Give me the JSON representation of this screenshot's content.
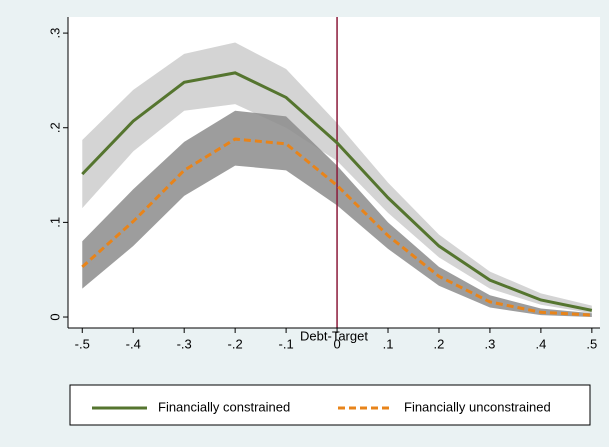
{
  "chart_data": {
    "type": "line",
    "x": [
      -0.5,
      -0.4,
      -0.3,
      -0.2,
      -0.1,
      0,
      0.1,
      0.2,
      0.3,
      0.4,
      0.5
    ],
    "xlabel": "Debt-Target",
    "xlim": [
      -0.528,
      0.516
    ],
    "xticks": [
      {
        "value": -0.5,
        "label": "-.5"
      },
      {
        "value": -0.4,
        "label": "-.4"
      },
      {
        "value": -0.3,
        "label": "-.3"
      },
      {
        "value": -0.2,
        "label": "-.2"
      },
      {
        "value": -0.1,
        "label": "-.1"
      },
      0,
      {
        "value": 0.1,
        "label": ".1"
      },
      {
        "value": 0.2,
        "label": ".2"
      },
      {
        "value": 0.3,
        "label": ".3"
      },
      {
        "value": 0.4,
        "label": ".4"
      },
      {
        "value": 0.5,
        "label": ".5"
      }
    ],
    "ylim": [
      -0.0116,
      0.317
    ],
    "yticks": [
      0,
      {
        "value": 0.1,
        "label": ".1"
      },
      {
        "value": 0.2,
        "label": ".2"
      },
      {
        "value": 0.3,
        "label": ".3"
      }
    ],
    "reference_line_x": 0,
    "reference_line_color": "#8b1a3a",
    "series": [
      {
        "name": "Financially constrained",
        "color": "#55752f",
        "dash": false,
        "band_color": "#d4d4d4",
        "values": [
          0.151,
          0.207,
          0.248,
          0.258,
          0.232,
          0.184,
          0.126,
          0.075,
          0.039,
          0.018,
          0.007
        ],
        "upper": [
          0.187,
          0.24,
          0.278,
          0.29,
          0.262,
          0.205,
          0.142,
          0.087,
          0.048,
          0.025,
          0.012
        ],
        "lower": [
          0.115,
          0.175,
          0.218,
          0.225,
          0.2,
          0.165,
          0.11,
          0.063,
          0.03,
          0.013,
          0.004
        ]
      },
      {
        "name": "Financially unconstrained",
        "color": "#e8841a",
        "dash": true,
        "band_color": "#8c8c8c",
        "values": [
          0.053,
          0.101,
          0.155,
          0.188,
          0.183,
          0.139,
          0.086,
          0.043,
          0.016,
          0.005,
          0.002
        ],
        "upper": [
          0.08,
          0.135,
          0.185,
          0.218,
          0.212,
          0.16,
          0.1,
          0.053,
          0.023,
          0.009,
          0.004
        ],
        "lower": [
          0.03,
          0.075,
          0.128,
          0.16,
          0.155,
          0.118,
          0.072,
          0.033,
          0.01,
          0.002,
          0
        ]
      }
    ]
  }
}
